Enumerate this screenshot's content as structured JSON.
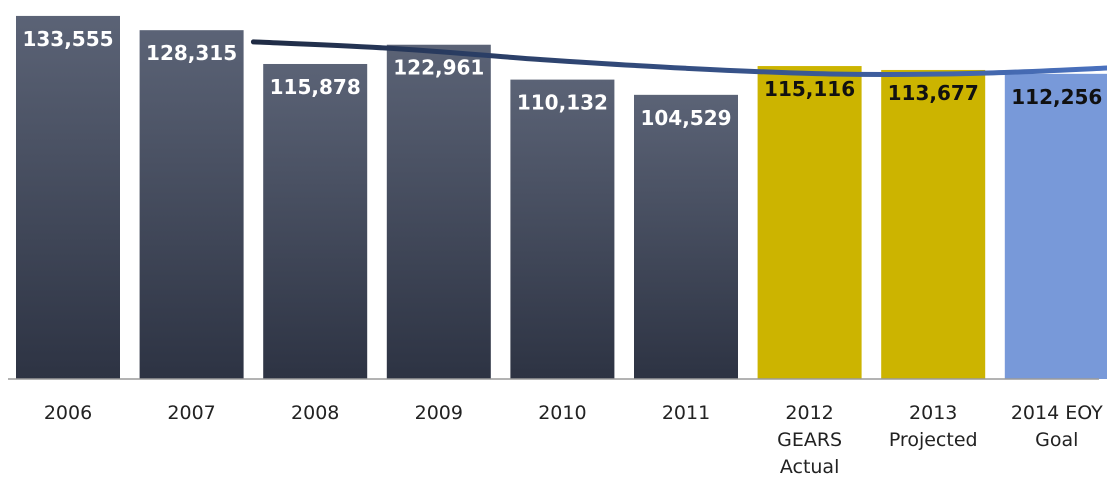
{
  "chart_data": {
    "type": "bar",
    "title": "",
    "xlabel": "",
    "ylabel": "",
    "ylim": [
      0,
      135000
    ],
    "categories": [
      [
        "2006"
      ],
      [
        "2007"
      ],
      [
        "2008"
      ],
      [
        "2009"
      ],
      [
        "2010"
      ],
      [
        "2011"
      ],
      [
        "2012",
        "GEARS",
        "Actual"
      ],
      [
        "2013",
        "Projected"
      ],
      [
        "2014 EOY",
        "Goal"
      ]
    ],
    "values": [
      133555,
      128315,
      115878,
      122961,
      110132,
      104529,
      115116,
      113677,
      112256
    ],
    "data_labels": [
      "133,555",
      "128,315",
      "115,878",
      "122,961",
      "110,132",
      "104,529",
      "115,116",
      "113,677",
      "112,256"
    ],
    "bar_groups": [
      "historical",
      "historical",
      "historical",
      "historical",
      "historical",
      "historical",
      "actual",
      "projected",
      "goal"
    ],
    "colors": {
      "historical_top": "#5b6376",
      "historical_bottom": "#2d3343",
      "actual": "#ccb400",
      "projected": "#ccb400",
      "goal": "#7899d9",
      "trend_start": "#1f2b44",
      "trend_end": "#4a72c0",
      "label_light": "#ffffff",
      "label_dark": "#111111",
      "axis": "#9a9a9a"
    },
    "trend_line": {
      "name": "",
      "x_start": 2.5,
      "x_end": 9.5,
      "values": [
        124000,
        121500,
        117500,
        114300,
        112200,
        112400,
        114600
      ]
    },
    "grid": false,
    "legend": "none"
  }
}
